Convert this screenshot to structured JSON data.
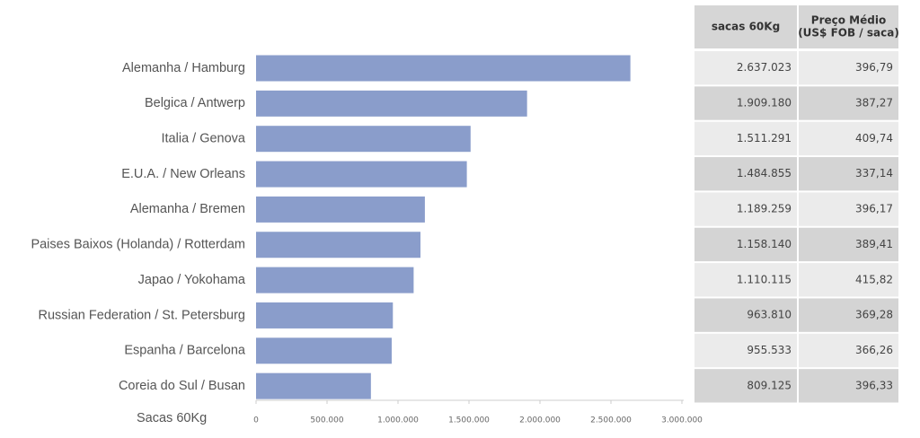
{
  "chart_data": {
    "type": "bar",
    "orientation": "horizontal",
    "categories": [
      "Alemanha / Hamburg",
      "Belgica / Antwerp",
      "Italia / Genova",
      "E.U.A. / New Orleans",
      "Alemanha / Bremen",
      "Paises Baixos (Holanda) / Rotterdam",
      "Japao / Yokohama",
      "Russian Federation / St. Petersburg",
      "Espanha / Barcelona",
      "Coreia do Sul / Busan"
    ],
    "values": [
      2637023,
      1909180,
      1511291,
      1484855,
      1189259,
      1158140,
      1110115,
      963810,
      955533,
      809125
    ],
    "color": "#8a9dcb",
    "xlabel": "Sacas 60Kg",
    "xlim": [
      0,
      3000000
    ],
    "xticks": [
      0,
      {
        "value": 500000,
        "label": "500.000"
      },
      {
        "value": 1000000,
        "label": "1.000.000"
      },
      {
        "value": 1500000,
        "label": "1.500.000"
      },
      {
        "value": 2000000,
        "label": "2.000.000"
      },
      {
        "value": 2500000,
        "label": "2.500.000"
      },
      {
        "value": 3000000,
        "label": "3.000.000"
      }
    ],
    "grid": false
  },
  "table": {
    "columns": [
      [
        "sacas 60Kg"
      ],
      [
        "Preço Médio",
        "(US$ FOB / saca)"
      ]
    ],
    "rows": [
      [
        "2.637.023",
        "396,79"
      ],
      [
        "1.909.180",
        "387,27"
      ],
      [
        "1.511.291",
        "409,74"
      ],
      [
        "1.484.855",
        "337,14"
      ],
      [
        "1.189.259",
        "396,17"
      ],
      [
        "1.158.140",
        "389,41"
      ],
      [
        "1.110.115",
        "415,82"
      ],
      [
        "963.810",
        "369,28"
      ],
      [
        "955.533",
        "366,26"
      ],
      [
        "809.125",
        "396,33"
      ]
    ]
  }
}
